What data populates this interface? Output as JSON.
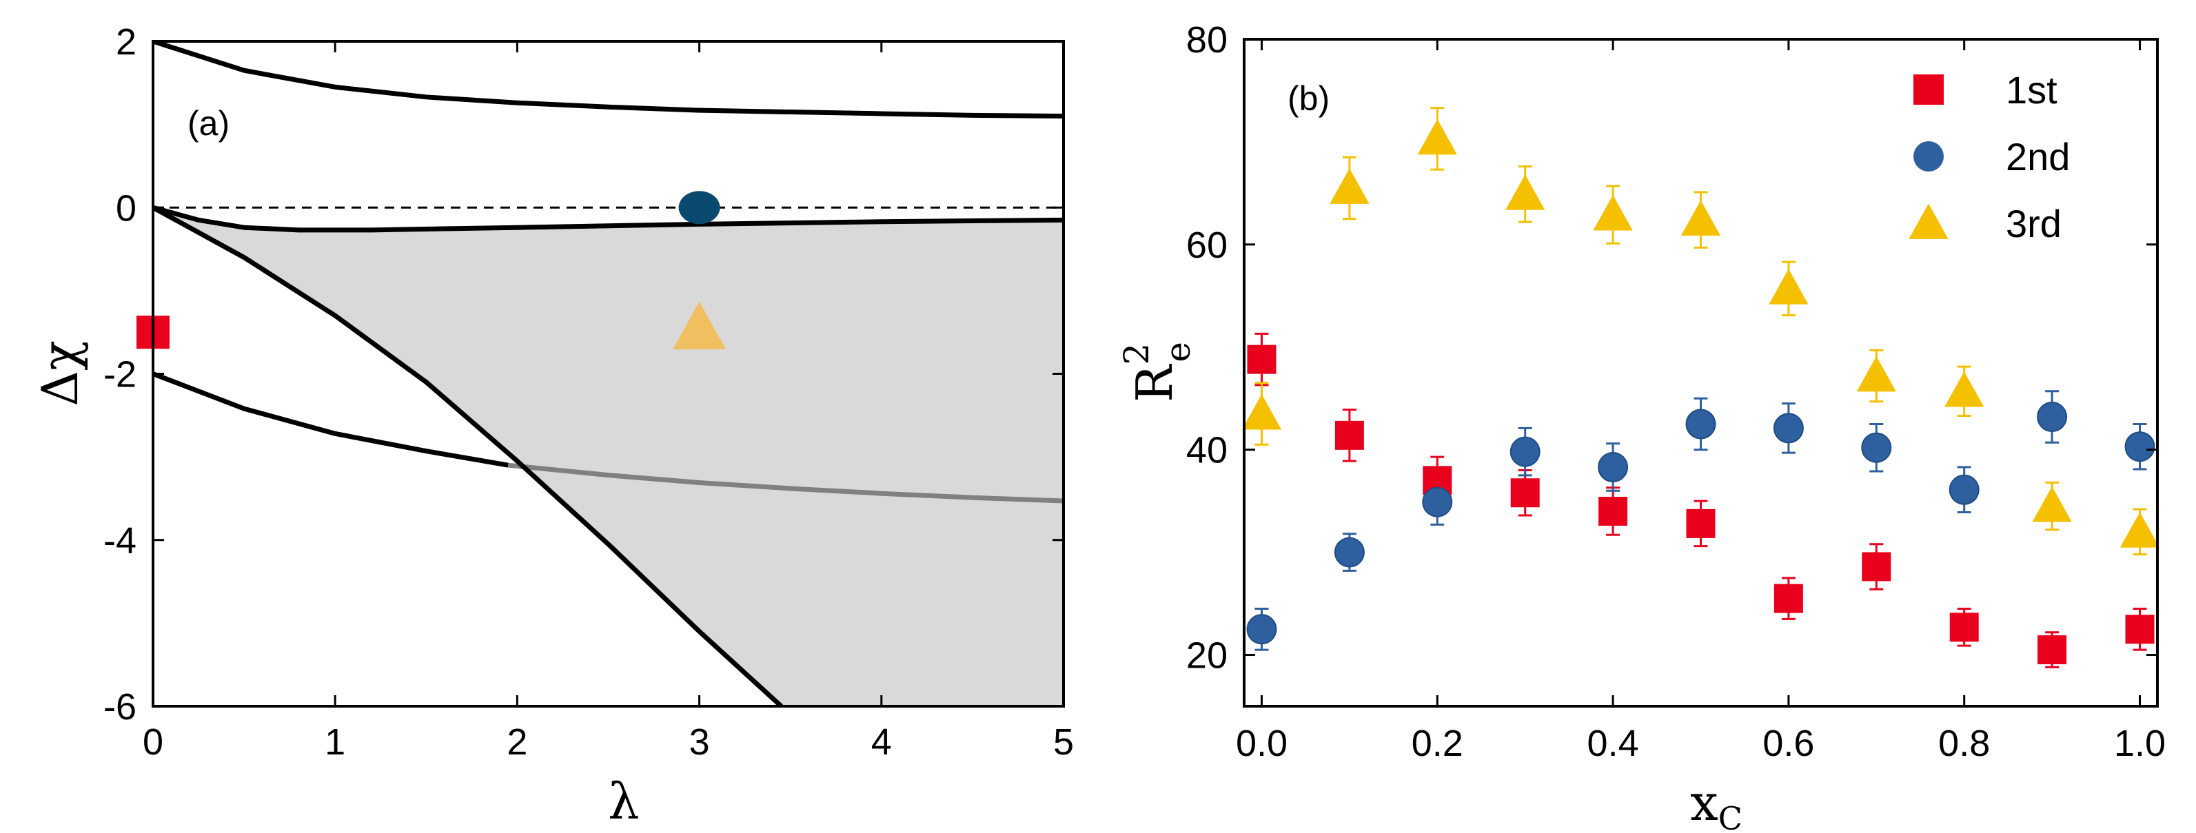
{
  "chart_data": [
    {
      "panel": "(a)",
      "type": "line",
      "xlabel": "λ",
      "ylabel": "Δχ",
      "xlim": [
        0,
        5
      ],
      "ylim": [
        -6,
        2
      ],
      "xticks": [
        "0",
        "1",
        "2",
        "3",
        "4",
        "5"
      ],
      "yticks": [
        "2",
        "0",
        "-2",
        "-4",
        "-6"
      ],
      "reference_line": {
        "y": 0,
        "style": "dashed"
      },
      "shaded_region": {
        "color": "#d9d9d9",
        "description": "region bounded above by the near-zero curve and below by the steep line"
      },
      "curves": [
        {
          "name": "upper",
          "color": "#000000",
          "x": [
            0,
            0.5,
            1,
            1.5,
            2,
            2.5,
            3,
            3.5,
            4,
            4.5,
            5
          ],
          "y": [
            2.0,
            1.65,
            1.45,
            1.33,
            1.26,
            1.21,
            1.17,
            1.15,
            1.13,
            1.11,
            1.1
          ]
        },
        {
          "name": "near-zero",
          "color": "#000000",
          "x": [
            0,
            0.25,
            0.5,
            0.8,
            1.2,
            2,
            3,
            4,
            5
          ],
          "y": [
            0,
            -0.15,
            -0.24,
            -0.27,
            -0.27,
            -0.24,
            -0.2,
            -0.17,
            -0.15
          ]
        },
        {
          "name": "lower-left",
          "color": "#000000",
          "x": [
            0,
            0.5,
            1,
            1.5,
            1.95
          ],
          "y": [
            -2.0,
            -2.42,
            -2.72,
            -2.93,
            -3.1
          ]
        },
        {
          "name": "lower-right",
          "color": "#808080",
          "x": [
            1.95,
            2.5,
            3,
            3.5,
            4,
            4.5,
            5
          ],
          "y": [
            -3.1,
            -3.22,
            -3.31,
            -3.38,
            -3.44,
            -3.49,
            -3.53
          ]
        },
        {
          "name": "steep",
          "color": "#000000",
          "x": [
            0,
            0.5,
            1,
            1.5,
            2,
            2.5,
            3,
            3.45
          ],
          "y": [
            0,
            -0.6,
            -1.3,
            -2.1,
            -3.05,
            -4.05,
            -5.1,
            -6.0
          ]
        }
      ],
      "markers": [
        {
          "shape": "square",
          "color": "#e8001c",
          "x": 0,
          "y": -1.5
        },
        {
          "shape": "circle",
          "color": "#0b4a6f",
          "x": 3,
          "y": 0
        },
        {
          "shape": "triangle",
          "color": "#f0c060",
          "x": 3,
          "y": -1.45
        }
      ]
    },
    {
      "panel": "(b)",
      "type": "scatter",
      "xlabel": "x",
      "xlabel_sub": "C",
      "ylabel": "R",
      "ylabel_sup": "2",
      "ylabel_sub": "e",
      "xlim": [
        -0.02,
        1.02
      ],
      "ylim": [
        15,
        80
      ],
      "xticks": [
        "0.0",
        "0.2",
        "0.4",
        "0.6",
        "0.8",
        "1.0"
      ],
      "yticks": [
        "20",
        "40",
        "60",
        "80"
      ],
      "legend_position": "top-right",
      "series": [
        {
          "name": "1st",
          "shape": "square",
          "color": "#e8001c",
          "x": [
            0,
            0.1,
            0.2,
            0.3,
            0.4,
            0.5,
            0.6,
            0.7,
            0.8,
            0.9,
            1.0
          ],
          "y": [
            48.8,
            41.4,
            37.0,
            35.8,
            34.0,
            32.8,
            25.5,
            28.6,
            22.7,
            20.5,
            22.5
          ],
          "err": [
            2.5,
            2.5,
            2.3,
            2.2,
            2.3,
            2.2,
            2.0,
            2.2,
            1.8,
            1.7,
            2.0
          ]
        },
        {
          "name": "2nd",
          "shape": "circle",
          "color": "#2e5f9e",
          "x": [
            0,
            0.1,
            0.2,
            0.3,
            0.4,
            0.5,
            0.6,
            0.7,
            0.8,
            0.9,
            1.0
          ],
          "y": [
            22.5,
            30.0,
            34.9,
            39.8,
            38.3,
            42.5,
            42.1,
            40.2,
            36.1,
            43.2,
            40.3
          ],
          "err": [
            2.0,
            1.8,
            2.2,
            2.3,
            2.3,
            2.5,
            2.4,
            2.3,
            2.2,
            2.5,
            2.2
          ]
        },
        {
          "name": "3rd",
          "shape": "triangle",
          "color": "#f5c000",
          "x": [
            0,
            0.1,
            0.2,
            0.3,
            0.4,
            0.5,
            0.6,
            0.7,
            0.8,
            0.9,
            1.0
          ],
          "y": [
            43.5,
            65.5,
            70.3,
            64.9,
            62.9,
            62.4,
            55.7,
            47.2,
            45.7,
            34.5,
            32.0
          ],
          "err": [
            3.0,
            3.0,
            3.0,
            2.7,
            2.8,
            2.7,
            2.6,
            2.5,
            2.4,
            2.3,
            2.2
          ]
        }
      ]
    }
  ]
}
